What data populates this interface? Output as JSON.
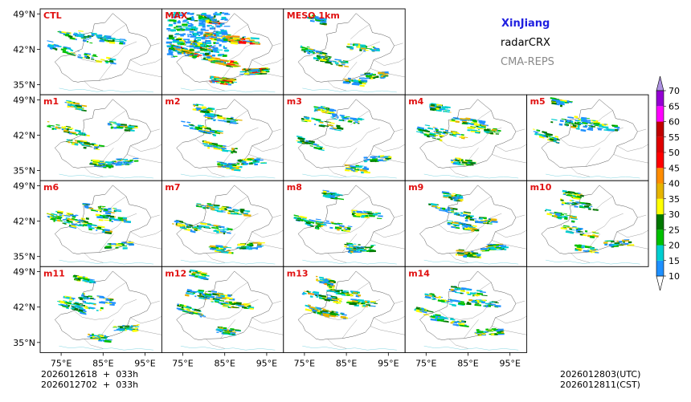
{
  "header": {
    "region": "XinJiang",
    "variable": "radarCRX",
    "system": "CMA-REPS"
  },
  "timestamps": {
    "init_line": "2026012618  +  033h",
    "init_line_bj": "2026012702  +  033h",
    "valid_utc": "2026012803(UTC)",
    "valid_cst": "2026012811(CST)"
  },
  "chart_data": {
    "type": "heatmap",
    "variable": "radarCRX",
    "panels": [
      {
        "label": "CTL",
        "row": 0,
        "col": 0,
        "intensity": 0.35
      },
      {
        "label": "MAX",
        "row": 0,
        "col": 1,
        "intensity": 1.0
      },
      {
        "label": "MESO  1km",
        "row": 0,
        "col": 2,
        "intensity": 0.55
      },
      {
        "label": "m1",
        "row": 1,
        "col": 0,
        "intensity": 0.55
      },
      {
        "label": "m2",
        "row": 1,
        "col": 1,
        "intensity": 0.6
      },
      {
        "label": "m3",
        "row": 1,
        "col": 2,
        "intensity": 0.5
      },
      {
        "label": "m4",
        "row": 1,
        "col": 3,
        "intensity": 0.55
      },
      {
        "label": "m5",
        "row": 1,
        "col": 4,
        "intensity": 0.45
      },
      {
        "label": "m6",
        "row": 2,
        "col": 0,
        "intensity": 0.5
      },
      {
        "label": "m7",
        "row": 2,
        "col": 1,
        "intensity": 0.55
      },
      {
        "label": "m8",
        "row": 2,
        "col": 2,
        "intensity": 0.55
      },
      {
        "label": "m9",
        "row": 2,
        "col": 3,
        "intensity": 0.6
      },
      {
        "label": "m10",
        "row": 2,
        "col": 4,
        "intensity": 0.5
      },
      {
        "label": "m11",
        "row": 3,
        "col": 0,
        "intensity": 0.5
      },
      {
        "label": "m12",
        "row": 3,
        "col": 1,
        "intensity": 0.55
      },
      {
        "label": "m13",
        "row": 3,
        "col": 2,
        "intensity": 0.65
      },
      {
        "label": "m14",
        "row": 3,
        "col": 3,
        "intensity": 0.5
      }
    ],
    "x_ticks": [
      {
        "value": 75,
        "label": "75°E"
      },
      {
        "value": 85,
        "label": "85°E"
      },
      {
        "value": 95,
        "label": "95°E"
      }
    ],
    "y_ticks": [
      {
        "value": 49,
        "label": "49°N"
      },
      {
        "value": 42,
        "label": "42°N"
      },
      {
        "value": 35,
        "label": "35°N"
      }
    ],
    "lon_range": [
      70,
      99
    ],
    "lat_range": [
      33,
      50
    ],
    "colorbar": {
      "levels": [
        10,
        15,
        20,
        25,
        30,
        35,
        40,
        45,
        50,
        55,
        60,
        65,
        70
      ],
      "labels": [
        "10",
        "15",
        "20",
        "25",
        "30",
        "35",
        "40",
        "45",
        "50",
        "55",
        "60",
        "65",
        "70"
      ],
      "colors": [
        "#1e90ff",
        "#00ced1",
        "#00c000",
        "#007800",
        "#ffff00",
        "#e6b400",
        "#ff8c00",
        "#ff0000",
        "#e00000",
        "#c00000",
        "#ff00ff",
        "#9400d3"
      ],
      "under_color": "#ffffff",
      "over_color": "#ad91e1",
      "extend": "both"
    }
  }
}
